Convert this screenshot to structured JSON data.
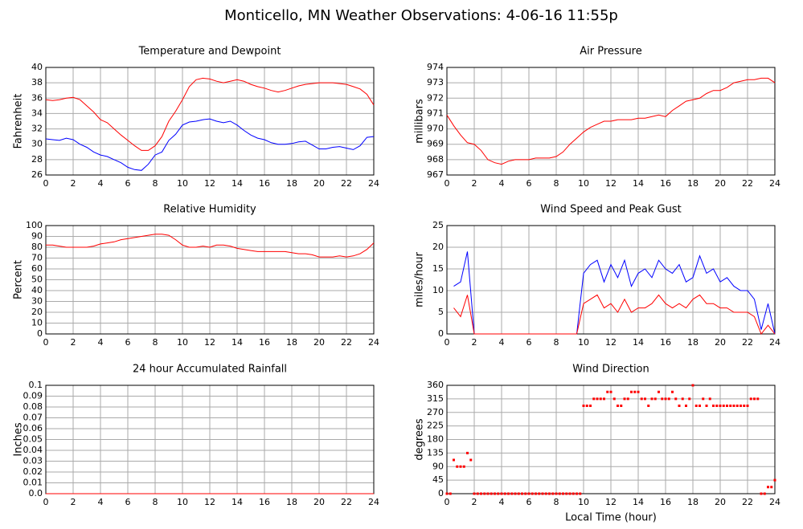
{
  "title": "Monticello, MN Weather Observations: 4-06-16 11:55p",
  "chart_data": [
    {
      "type": "line",
      "title": "Temperature and Dewpoint",
      "ylabel": "Fahrenheit",
      "xlim": [
        0,
        24
      ],
      "xticks": [
        0,
        2,
        4,
        6,
        8,
        10,
        12,
        14,
        16,
        18,
        20,
        22,
        24
      ],
      "ylim": [
        26,
        40
      ],
      "yticks": [
        26,
        28,
        30,
        32,
        34,
        36,
        38,
        40
      ],
      "grid": true,
      "x": [
        0,
        0.5,
        1,
        1.5,
        2,
        2.5,
        3,
        3.5,
        4,
        4.5,
        5,
        5.5,
        6,
        6.5,
        7,
        7.5,
        8,
        8.5,
        9,
        9.5,
        10,
        10.5,
        11,
        11.5,
        12,
        12.5,
        13,
        13.5,
        14,
        14.5,
        15,
        15.5,
        16,
        16.5,
        17,
        17.5,
        18,
        18.5,
        19,
        19.5,
        20,
        20.5,
        21,
        21.5,
        22,
        22.5,
        23,
        23.5,
        24
      ],
      "series": [
        {
          "color": "#ff0000",
          "values": [
            35.8,
            35.7,
            35.8,
            36.0,
            36.1,
            35.8,
            35.0,
            34.2,
            33.2,
            32.8,
            32.0,
            31.2,
            30.5,
            29.8,
            29.2,
            29.2,
            29.8,
            31.0,
            33.0,
            34.3,
            35.8,
            37.5,
            38.4,
            38.6,
            38.5,
            38.2,
            38.0,
            38.2,
            38.4,
            38.2,
            37.8,
            37.5,
            37.3,
            37.0,
            36.8,
            37.0,
            37.3,
            37.6,
            37.8,
            37.9,
            38.0,
            38.0,
            38.0,
            37.9,
            37.8,
            37.5,
            37.2,
            36.5,
            35.1
          ]
        },
        {
          "color": "#0000ff",
          "values": [
            30.7,
            30.6,
            30.5,
            30.8,
            30.6,
            30.0,
            29.6,
            29.0,
            28.6,
            28.4,
            28.0,
            27.6,
            27.0,
            26.7,
            26.6,
            27.4,
            28.6,
            29.0,
            30.5,
            31.3,
            32.5,
            32.9,
            33.0,
            33.2,
            33.3,
            33.0,
            32.8,
            33.0,
            32.5,
            31.8,
            31.2,
            30.8,
            30.6,
            30.2,
            30.0,
            30.0,
            30.1,
            30.3,
            30.4,
            29.9,
            29.4,
            29.4,
            29.6,
            29.7,
            29.5,
            29.3,
            29.8,
            30.9,
            31.0
          ]
        }
      ]
    },
    {
      "type": "line",
      "title": "Air Pressure",
      "ylabel": "millibars",
      "xlim": [
        0,
        24
      ],
      "xticks": [
        0,
        2,
        4,
        6,
        8,
        10,
        12,
        14,
        16,
        18,
        20,
        22,
        24
      ],
      "ylim": [
        967,
        974
      ],
      "yticks": [
        967,
        968,
        969,
        970,
        971,
        972,
        973,
        974
      ],
      "grid": true,
      "x": [
        0,
        0.5,
        1,
        1.5,
        2,
        2.5,
        3,
        3.5,
        4,
        4.5,
        5,
        5.5,
        6,
        6.5,
        7,
        7.5,
        8,
        8.5,
        9,
        9.5,
        10,
        10.5,
        11,
        11.5,
        12,
        12.5,
        13,
        13.5,
        14,
        14.5,
        15,
        15.5,
        16,
        16.5,
        17,
        17.5,
        18,
        18.5,
        19,
        19.5,
        20,
        20.5,
        21,
        21.5,
        22,
        22.5,
        23,
        23.5,
        24
      ],
      "series": [
        {
          "color": "#ff0000",
          "values": [
            970.9,
            970.2,
            969.6,
            969.1,
            969.0,
            968.6,
            968.0,
            967.8,
            967.7,
            967.9,
            968.0,
            968.0,
            968.0,
            968.1,
            968.1,
            968.1,
            968.2,
            968.5,
            969.0,
            969.4,
            969.8,
            970.1,
            970.3,
            970.5,
            970.5,
            970.6,
            970.6,
            970.6,
            970.7,
            970.7,
            970.8,
            970.9,
            970.8,
            971.2,
            971.5,
            971.8,
            971.9,
            972.0,
            972.3,
            972.5,
            972.5,
            972.7,
            973.0,
            973.1,
            973.2,
            973.2,
            973.3,
            973.3,
            973.0
          ]
        }
      ]
    },
    {
      "type": "line",
      "title": "Relative Humidity",
      "ylabel": "Percent",
      "xlim": [
        0,
        24
      ],
      "xticks": [
        0,
        2,
        4,
        6,
        8,
        10,
        12,
        14,
        16,
        18,
        20,
        22,
        24
      ],
      "ylim": [
        0,
        100
      ],
      "yticks": [
        0,
        10,
        20,
        30,
        40,
        50,
        60,
        70,
        80,
        90,
        100
      ],
      "grid": true,
      "x": [
        0,
        0.5,
        1,
        1.5,
        2,
        2.5,
        3,
        3.5,
        4,
        4.5,
        5,
        5.5,
        6,
        6.5,
        7,
        7.5,
        8,
        8.5,
        9,
        9.5,
        10,
        10.5,
        11,
        11.5,
        12,
        12.5,
        13,
        13.5,
        14,
        14.5,
        15,
        15.5,
        16,
        16.5,
        17,
        17.5,
        18,
        18.5,
        19,
        19.5,
        20,
        20.5,
        21,
        21.5,
        22,
        22.5,
        23,
        23.5,
        24
      ],
      "series": [
        {
          "color": "#ff0000",
          "values": [
            82,
            82,
            81,
            80,
            80,
            80,
            80,
            81,
            83,
            84,
            85,
            87,
            88,
            89,
            90,
            91,
            92,
            92,
            91,
            87,
            82,
            80,
            80,
            81,
            80,
            82,
            82,
            81,
            79,
            78,
            77,
            76,
            76,
            76,
            76,
            76,
            75,
            74,
            74,
            73,
            71,
            71,
            71,
            72,
            71,
            72,
            74,
            78,
            84
          ]
        }
      ]
    },
    {
      "type": "line",
      "title": "Wind Speed and Peak Gust",
      "ylabel": "miles/hour",
      "xlim": [
        0,
        24
      ],
      "xticks": [
        0,
        2,
        4,
        6,
        8,
        10,
        12,
        14,
        16,
        18,
        20,
        22,
        24
      ],
      "ylim": [
        0,
        25
      ],
      "yticks": [
        0,
        5,
        10,
        15,
        20,
        25
      ],
      "grid": true,
      "x": [
        0,
        0.5,
        1,
        1.5,
        2,
        2.5,
        3,
        3.5,
        4,
        4.5,
        5,
        5.5,
        6,
        6.5,
        7,
        7.5,
        8,
        8.5,
        9,
        9.5,
        10,
        10.5,
        11,
        11.5,
        12,
        12.5,
        13,
        13.5,
        14,
        14.5,
        15,
        15.5,
        16,
        16.5,
        17,
        17.5,
        18,
        18.5,
        19,
        19.5,
        20,
        20.5,
        21,
        21.5,
        22,
        22.5,
        23,
        23.5,
        24
      ],
      "series": [
        {
          "color": "#0000ff",
          "values": [
            null,
            11,
            12,
            19,
            0,
            0,
            0,
            0,
            0,
            0,
            0,
            0,
            0,
            0,
            0,
            0,
            0,
            0,
            0,
            0,
            14,
            16,
            17,
            12,
            16,
            13,
            17,
            11,
            14,
            15,
            13,
            17,
            15,
            14,
            16,
            12,
            13,
            18,
            14,
            15,
            12,
            13,
            11,
            10,
            10,
            8,
            1,
            7,
            0
          ]
        },
        {
          "color": "#ff0000",
          "values": [
            null,
            6,
            4,
            9,
            0,
            0,
            0,
            0,
            0,
            0,
            0,
            0,
            0,
            0,
            0,
            0,
            0,
            0,
            0,
            0,
            7,
            8,
            9,
            6,
            7,
            5,
            8,
            5,
            6,
            6,
            7,
            9,
            7,
            6,
            7,
            6,
            8,
            9,
            7,
            7,
            6,
            6,
            5,
            5,
            5,
            4,
            0,
            2,
            0
          ]
        }
      ]
    },
    {
      "type": "line",
      "title": "24 hour Accumulated Rainfall",
      "ylabel": "Inches",
      "xlim": [
        0,
        24
      ],
      "xticks": [
        0,
        2,
        4,
        6,
        8,
        10,
        12,
        14,
        16,
        18,
        20,
        22,
        24
      ],
      "ylim": [
        0,
        0.1
      ],
      "yticks": [
        {
          "value": 0,
          "label": "0.0"
        },
        0.01,
        0.02,
        0.03,
        0.04,
        0.05,
        0.06,
        0.07,
        0.08,
        0.09,
        0.1
      ],
      "grid": true,
      "x": [
        0,
        24
      ],
      "series": [
        {
          "color": "#ff0000",
          "values": [
            0,
            0
          ]
        }
      ]
    },
    {
      "type": "scatter",
      "title": "Wind Direction",
      "ylabel": "degrees",
      "xlabel": "Local Time (hour)",
      "xlim": [
        0,
        24
      ],
      "xticks": [
        0,
        2,
        4,
        6,
        8,
        10,
        12,
        14,
        16,
        18,
        20,
        22,
        24
      ],
      "ylim": [
        0,
        360
      ],
      "yticks": [
        0,
        45,
        90,
        135,
        180,
        225,
        270,
        315,
        360
      ],
      "grid": true,
      "x": [
        0,
        0.25,
        0.5,
        0.75,
        1,
        1.25,
        1.5,
        1.75,
        2,
        2.25,
        2.5,
        2.75,
        3,
        3.25,
        3.5,
        3.75,
        4,
        4.25,
        4.5,
        4.75,
        5,
        5.25,
        5.5,
        5.75,
        6,
        6.25,
        6.5,
        6.75,
        7,
        7.25,
        7.5,
        7.75,
        8,
        8.25,
        8.5,
        8.75,
        9,
        9.25,
        9.5,
        9.75,
        10,
        10.25,
        10.5,
        10.75,
        11,
        11.25,
        11.5,
        11.75,
        12,
        12.25,
        12.5,
        12.75,
        13,
        13.25,
        13.5,
        13.75,
        14,
        14.25,
        14.5,
        14.75,
        15,
        15.25,
        15.5,
        15.75,
        16,
        16.25,
        16.5,
        16.75,
        17,
        17.25,
        17.5,
        17.75,
        18,
        18.25,
        18.5,
        18.75,
        19,
        19.25,
        19.5,
        19.75,
        20,
        20.25,
        20.5,
        20.75,
        21,
        21.25,
        21.5,
        21.75,
        22,
        22.25,
        22.5,
        22.75,
        23,
        23.25,
        23.5,
        23.75,
        24
      ],
      "series": [
        {
          "color": "#ff0000",
          "values": [
            0,
            0,
            112,
            90,
            90,
            90,
            135,
            112,
            0,
            0,
            0,
            0,
            0,
            0,
            0,
            0,
            0,
            0,
            0,
            0,
            0,
            0,
            0,
            0,
            0,
            0,
            0,
            0,
            0,
            0,
            0,
            0,
            0,
            0,
            0,
            0,
            0,
            0,
            0,
            0,
            292,
            292,
            292,
            315,
            315,
            315,
            315,
            338,
            338,
            315,
            292,
            292,
            315,
            315,
            338,
            338,
            338,
            315,
            315,
            292,
            315,
            315,
            338,
            315,
            315,
            315,
            338,
            315,
            292,
            315,
            292,
            315,
            360,
            292,
            292,
            315,
            292,
            315,
            292,
            292,
            292,
            292,
            292,
            292,
            292,
            292,
            292,
            292,
            292,
            315,
            315,
            315,
            0,
            0,
            22,
            22,
            45
          ]
        }
      ]
    }
  ]
}
